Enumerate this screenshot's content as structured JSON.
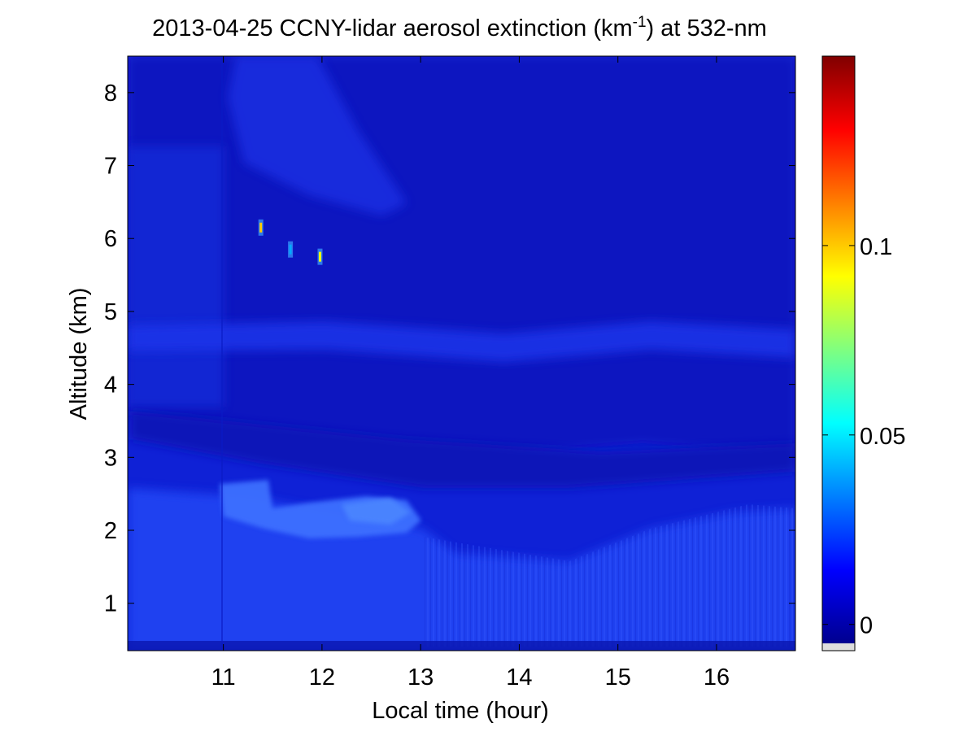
{
  "chart_data": {
    "type": "heatmap",
    "title": "2013-04-25 CCNY-lidar aerosol extinction (km",
    "title_superscript": "-1",
    "title_suffix": ") at 532-nm",
    "xlabel": "Local time (hour)",
    "ylabel": "Altitude (km)",
    "xlim": [
      10.03,
      16.8
    ],
    "ylim": [
      0.35,
      8.5
    ],
    "x_ticks": [
      11,
      12,
      13,
      14,
      15,
      16
    ],
    "x_tick_labels": [
      "11",
      "12",
      "13",
      "14",
      "15",
      "16"
    ],
    "y_ticks": [
      1,
      2,
      3,
      4,
      5,
      6,
      7,
      8
    ],
    "y_tick_labels": [
      "1",
      "2",
      "3",
      "4",
      "5",
      "6",
      "7",
      "8"
    ],
    "colormap": "jet",
    "colorbar": {
      "range": [
        -0.005,
        0.15
      ],
      "ticks": [
        0,
        0.05,
        0.1
      ],
      "tick_labels": [
        "0",
        "0.05",
        "0.1"
      ]
    },
    "layers": [
      {
        "name": "boundary-layer aerosol",
        "x_range": [
          10.03,
          16.8
        ],
        "altitude_range": [
          0.35,
          2.4
        ],
        "approx_extinction": 0.015
      },
      {
        "name": "elevated aerosol layer",
        "x_range": [
          10.5,
          12.9
        ],
        "altitude_range": [
          1.9,
          2.7
        ],
        "approx_extinction": 0.03
      },
      {
        "name": "mid-level aerosol band",
        "x_range": [
          10.03,
          16.8
        ],
        "altitude_range": [
          4.3,
          4.9
        ],
        "approx_extinction": 0.01
      }
    ],
    "cloud_points": [
      {
        "time": 11.38,
        "altitude": 6.15,
        "value": 0.1
      },
      {
        "time": 11.68,
        "altitude": 5.85,
        "value": 0.04
      },
      {
        "time": 11.98,
        "altitude": 5.75,
        "value": 0.09
      }
    ],
    "legend": "colorbar right"
  }
}
